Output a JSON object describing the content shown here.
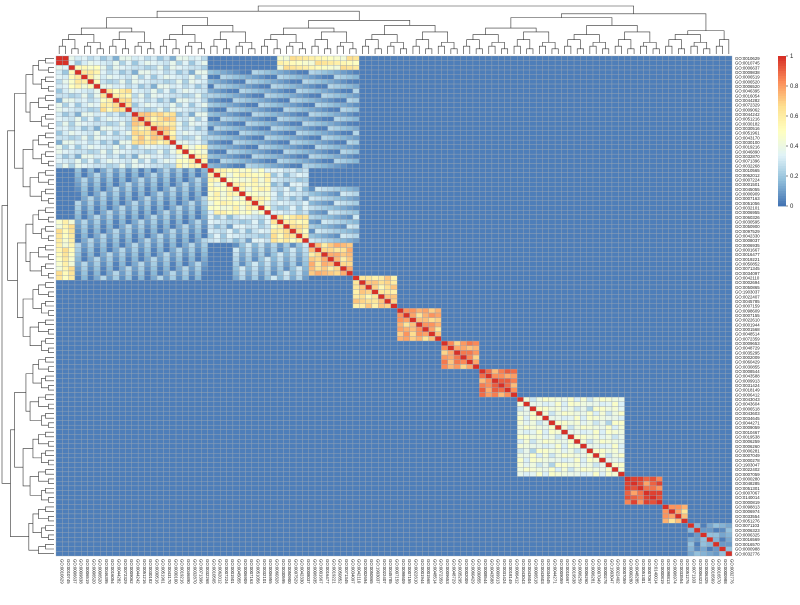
{
  "chart_data": {
    "type": "heatmap",
    "n": 107,
    "row_labels": [
      "GO:0010629",
      "GO:0010745",
      "GO:0006637",
      "GO:0009838",
      "GO:0006519",
      "GO:0006520",
      "GO:0006520",
      "GO:0046395",
      "GO:0016054",
      "GO:0044282",
      "GO:0072329",
      "GO:0009062",
      "GO:0044242",
      "GO:0051216",
      "GO:0030182",
      "GO:0030516",
      "GO:0051961",
      "GO:0043170",
      "GO:0030100",
      "GO:0019216",
      "GO:0046890",
      "GO:0032870",
      "GO:0071396",
      "GO:0032268",
      "GO:0010565",
      "GO:0062012",
      "GO:0007224",
      "GO:0001501",
      "GO:0045055",
      "GO:0006909",
      "GO:0007163",
      "GO:0051056",
      "GO:0032101",
      "GO:0006955",
      "GO:0060326",
      "GO:0030595",
      "GO:0050900",
      "GO:0097529",
      "GO:0042330",
      "GO:0008037",
      "GO:0006935",
      "GO:0001667",
      "GO:0016477",
      "GO:0019221",
      "GO:0050852",
      "GO:0071345",
      "GO:0034097",
      "GO:0042110",
      "GO:0002694",
      "GO:0050865",
      "GO:1903037",
      "GO:0022407",
      "GO:0045785",
      "GO:0007159",
      "GO:0098609",
      "GO:0007155",
      "GO:0022610",
      "GO:0001944",
      "GO:0001568",
      "GO:0048514",
      "GO:0072359",
      "GO:0009653",
      "GO:0048729",
      "GO:0035295",
      "GO:0002009",
      "GO:0060429",
      "GO:0030855",
      "GO:0008544",
      "GO:0043588",
      "GO:0009913",
      "GO:0031424",
      "GO:0018149",
      "GO:0006412",
      "GO:0043043",
      "GO:0043604",
      "GO:0006518",
      "GO:0043603",
      "GO:0034645",
      "GO:0044271",
      "GO:0009059",
      "GO:0010467",
      "GO:0019538",
      "GO:0006259",
      "GO:0006260",
      "GO:0006281",
      "GO:0007049",
      "GO:0000278",
      "GO:1903047",
      "GO:0022402",
      "GO:0007059",
      "GO:0000280",
      "GO:0048285",
      "GO:0051301",
      "GO:0007067",
      "GO:0140014",
      "GO:0000819",
      "GO:0098813",
      "GO:0006974",
      "GO:0033554",
      "GO:0051276",
      "GO:0071103",
      "GO:0006323",
      "GO:0006325",
      "GO:0016569",
      "GO:0016570",
      "GO:0000988",
      "GO:0032776"
    ],
    "col_labels": [
      "GO:0010629",
      "GO:0010745",
      "GO:0006637",
      "GO:0009838",
      "GO:0006519",
      "GO:0006520",
      "GO:0006520",
      "GO:0046395",
      "GO:0016054",
      "GO:0044282",
      "GO:0072329",
      "GO:0009062",
      "GO:0044242",
      "GO:0051216",
      "GO:0030182",
      "GO:0030516",
      "GO:0051961",
      "GO:0043170",
      "GO:0030100",
      "GO:0019216",
      "GO:0046890",
      "GO:0032870",
      "GO:0071396",
      "GO:0032268",
      "GO:0010565",
      "GO:0062012",
      "GO:0007224",
      "GO:0001501",
      "GO:0045055",
      "GO:0006909",
      "GO:0007163",
      "GO:0051056",
      "GO:0032101",
      "GO:0006955",
      "GO:0060326",
      "GO:0030595",
      "GO:0050900",
      "GO:0097529",
      "GO:0042330",
      "GO:0008037",
      "GO:0006935",
      "GO:0001667",
      "GO:0016477",
      "GO:0019221",
      "GO:0050852",
      "GO:0071345",
      "GO:0034097",
      "GO:0042110",
      "GO:0002694",
      "GO:0050865",
      "GO:1903037",
      "GO:0022407",
      "GO:0045785",
      "GO:0007159",
      "GO:0098609",
      "GO:0007155",
      "GO:0022610",
      "GO:0001944",
      "GO:0001568",
      "GO:0048514",
      "GO:0072359",
      "GO:0009653",
      "GO:0048729",
      "GO:0035295",
      "GO:0002009",
      "GO:0060429",
      "GO:0030855",
      "GO:0008544",
      "GO:0043588",
      "GO:0009913",
      "GO:0031424",
      "GO:0018149",
      "GO:0006412",
      "GO:0043043",
      "GO:0043604",
      "GO:0006518",
      "GO:0043603",
      "GO:0034645",
      "GO:0044271",
      "GO:0009059",
      "GO:0010467",
      "GO:0019538",
      "GO:0006259",
      "GO:0006260",
      "GO:0006281",
      "GO:0007049",
      "GO:0000278",
      "GO:1903047",
      "GO:0022402",
      "GO:0007059",
      "GO:0000280",
      "GO:0048285",
      "GO:0051301",
      "GO:0007067",
      "GO:0140014",
      "GO:0000819",
      "GO:0098813",
      "GO:0006974",
      "GO:0033554",
      "GO:0051276",
      "GO:0071103",
      "GO:0006323",
      "GO:0006325",
      "GO:0016569",
      "GO:0016570",
      "GO:0000988",
      "GO:0032776"
    ],
    "background_value": 0.02,
    "diagonal_value": 1.0,
    "blocks": [
      {
        "r0": 0,
        "r1": 24,
        "c0": 0,
        "c1": 24,
        "v": 0.25
      },
      {
        "r0": 0,
        "r1": 2,
        "c0": 0,
        "c1": 2,
        "v": 0.9
      },
      {
        "r0": 2,
        "r1": 7,
        "c0": 2,
        "c1": 7,
        "v": 0.5
      },
      {
        "r0": 7,
        "r1": 12,
        "c0": 7,
        "c1": 12,
        "v": 0.55
      },
      {
        "r0": 12,
        "r1": 19,
        "c0": 12,
        "c1": 19,
        "v": 0.6
      },
      {
        "r0": 19,
        "r1": 24,
        "c0": 19,
        "c1": 24,
        "v": 0.45
      },
      {
        "r0": 0,
        "r1": 3,
        "c0": 35,
        "c1": 48,
        "v": 0.55
      },
      {
        "r0": 3,
        "r1": 24,
        "c0": 24,
        "c1": 48,
        "v": 0.12
      },
      {
        "r0": 24,
        "r1": 40,
        "c0": 24,
        "c1": 40,
        "v": 0.22
      },
      {
        "r0": 24,
        "r1": 34,
        "c0": 24,
        "c1": 34,
        "v": 0.45
      },
      {
        "r0": 34,
        "r1": 40,
        "c0": 34,
        "c1": 40,
        "v": 0.55
      },
      {
        "r0": 28,
        "r1": 40,
        "c0": 40,
        "c1": 48,
        "v": 0.18
      },
      {
        "r0": 40,
        "r1": 47,
        "c0": 40,
        "c1": 47,
        "v": 0.65
      },
      {
        "r0": 47,
        "r1": 54,
        "c0": 47,
        "c1": 54,
        "v": 0.6
      },
      {
        "r0": 54,
        "r1": 61,
        "c0": 54,
        "c1": 61,
        "v": 0.7
      },
      {
        "r0": 61,
        "r1": 67,
        "c0": 61,
        "c1": 67,
        "v": 0.75
      },
      {
        "r0": 67,
        "r1": 73,
        "c0": 67,
        "c1": 73,
        "v": 0.8
      },
      {
        "r0": 73,
        "r1": 90,
        "c0": 73,
        "c1": 90,
        "v": 0.35
      },
      {
        "r0": 90,
        "r1": 96,
        "c0": 90,
        "c1": 96,
        "v": 0.85
      },
      {
        "r0": 96,
        "r1": 100,
        "c0": 96,
        "c1": 100,
        "v": 0.7
      },
      {
        "r0": 100,
        "r1": 107,
        "c0": 100,
        "c1": 107,
        "v": 0.05
      }
    ],
    "legend": {
      "ticks": [
        0,
        0.2,
        0.4,
        0.6,
        0.8,
        1
      ],
      "tick_labels": [
        "0",
        "0.2",
        "0.4",
        "0.6",
        "0.8",
        "1"
      ],
      "placement": "top-right"
    },
    "colorscale": [
      "#4575b4",
      "#91bfdb",
      "#e0f3f8",
      "#ffffbf",
      "#fee090",
      "#fc8d59",
      "#d73027"
    ],
    "grid": true,
    "row_dendrogram": true,
    "col_dendrogram": true,
    "title": "",
    "xlabel": "",
    "ylabel": ""
  }
}
